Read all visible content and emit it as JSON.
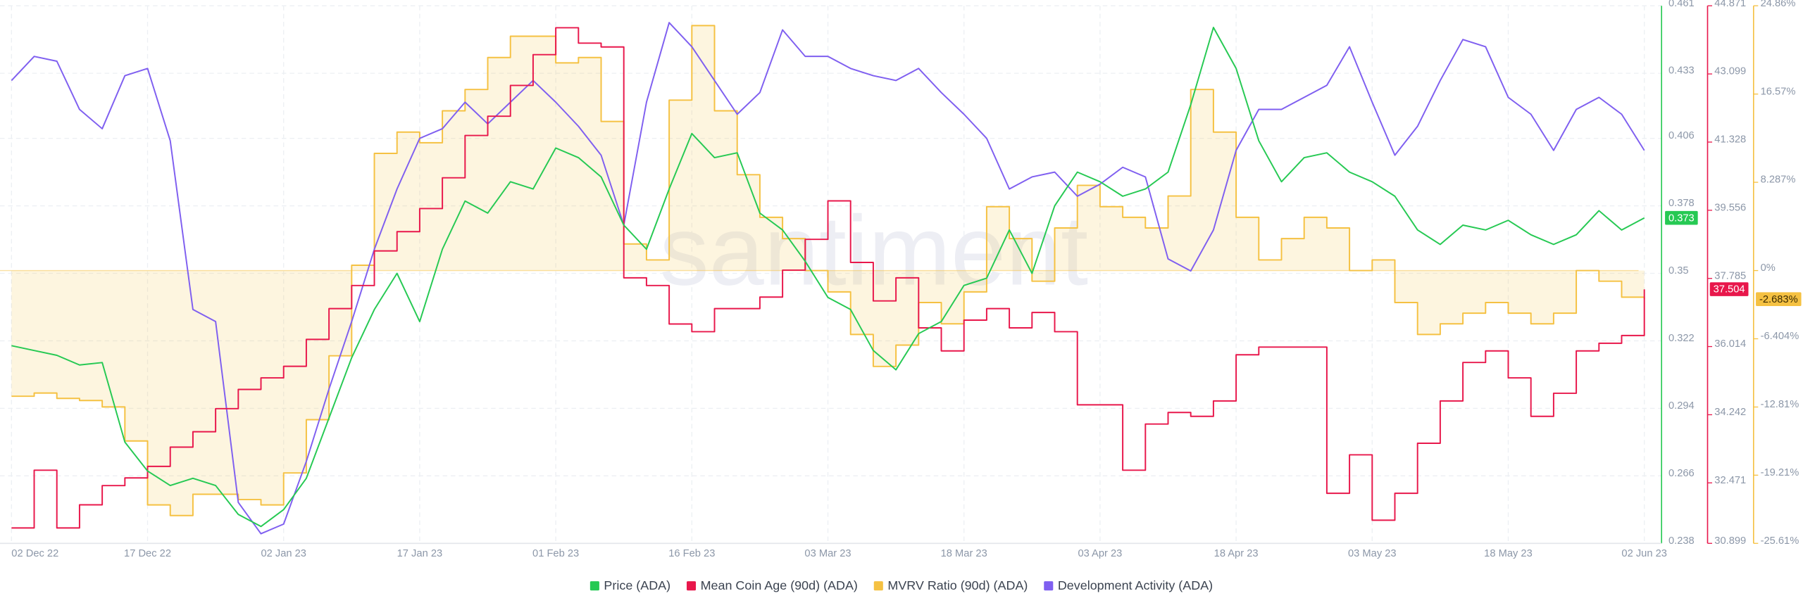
{
  "chart_data": {
    "type": "line",
    "watermark": "santiment",
    "categories": [
      "02 Dec 22",
      null,
      null,
      null,
      null,
      null,
      "17 Dec 22",
      null,
      null,
      null,
      null,
      null,
      "02 Jan 23",
      null,
      null,
      null,
      null,
      null,
      "17 Jan 23",
      null,
      null,
      null,
      null,
      null,
      "01 Feb 23",
      null,
      null,
      null,
      null,
      null,
      "16 Feb 23",
      null,
      null,
      null,
      null,
      null,
      "03 Mar 23",
      null,
      null,
      null,
      null,
      null,
      "18 Mar 23",
      null,
      null,
      null,
      null,
      null,
      "03 Apr 23",
      null,
      null,
      null,
      null,
      null,
      "18 Apr 23",
      null,
      null,
      null,
      null,
      null,
      "03 May 23",
      null,
      null,
      null,
      null,
      null,
      "18 May 23",
      null,
      null,
      null,
      null,
      null,
      "02 Jun 23"
    ],
    "ylim": [
      0.238,
      0.461
    ],
    "yticks": [
      0.238,
      0.266,
      0.294,
      0.322,
      0.35,
      0.378,
      0.406,
      0.433,
      0.461
    ],
    "y2lim": [
      30.899,
      44.871
    ],
    "y2ticks": [
      30.899,
      32.471,
      34.242,
      36.014,
      37.785,
      39.556,
      41.328,
      43.099,
      44.871
    ],
    "y3lim": [
      -25.61,
      24.86
    ],
    "y3ticks": [
      {
        "value": -25.61,
        "label": "-25.61%"
      },
      {
        "value": -19.21,
        "label": "-19.21%"
      },
      {
        "value": -12.81,
        "label": "-12.81%"
      },
      {
        "value": -6.404,
        "label": "-6.404%"
      },
      {
        "value": 0,
        "label": "0%"
      },
      {
        "value": 8.287,
        "label": "8.287%"
      },
      {
        "value": 16.57,
        "label": "16.57%"
      },
      {
        "value": 24.86,
        "label": "24.86%"
      }
    ],
    "grid": true,
    "legend": "bottom",
    "series": [
      {
        "name": "Price (ADA)",
        "color": "#26c953",
        "axis": "y",
        "style": "line",
        "current": 0.373,
        "values": [
          0.32,
          0.318,
          0.316,
          0.312,
          0.313,
          0.28,
          0.268,
          0.262,
          0.265,
          0.262,
          0.25,
          0.245,
          0.252,
          0.265,
          0.29,
          0.315,
          0.335,
          0.35,
          0.33,
          0.36,
          0.38,
          0.375,
          0.388,
          0.385,
          0.402,
          0.398,
          0.39,
          0.37,
          0.36,
          0.385,
          0.408,
          0.398,
          0.4,
          0.375,
          0.368,
          0.355,
          0.34,
          0.335,
          0.318,
          0.31,
          0.325,
          0.33,
          0.345,
          0.348,
          0.368,
          0.35,
          0.378,
          0.392,
          0.388,
          0.382,
          0.385,
          0.392,
          0.42,
          0.452,
          0.435,
          0.405,
          0.388,
          0.398,
          0.4,
          0.392,
          0.388,
          0.382,
          0.368,
          0.362,
          0.37,
          0.368,
          0.372,
          0.366,
          0.362,
          0.366,
          0.376,
          0.368,
          0.373
        ]
      },
      {
        "name": "Mean Coin Age (90d) (ADA)",
        "color": "#e8174b",
        "axis": "y2",
        "style": "step",
        "current": 37.504,
        "values": [
          31.3,
          32.8,
          31.3,
          31.9,
          32.4,
          32.6,
          32.9,
          33.4,
          33.8,
          34.4,
          34.9,
          35.2,
          35.5,
          36.2,
          37.0,
          37.6,
          38.5,
          39.0,
          39.6,
          40.4,
          41.5,
          42.0,
          42.8,
          43.6,
          44.3,
          43.9,
          43.8,
          37.8,
          37.6,
          36.6,
          36.4,
          37.0,
          37.0,
          37.3,
          38.0,
          38.8,
          39.8,
          38.2,
          37.2,
          37.8,
          36.5,
          35.9,
          36.7,
          37.0,
          36.5,
          36.9,
          36.4,
          34.5,
          34.5,
          32.8,
          34.0,
          34.3,
          34.2,
          34.6,
          35.8,
          36.0,
          36.0,
          36.0,
          32.2,
          33.2,
          31.5,
          32.2,
          33.5,
          34.6,
          35.6,
          35.9,
          35.2,
          34.2,
          34.8,
          35.9,
          36.1,
          36.3,
          37.5
        ]
      },
      {
        "name": "MVRV Ratio (90d) (ADA)",
        "color": "#f5c142",
        "axis": "y3",
        "style": "step-area",
        "current": {
          "value": -2.683,
          "label": "-2.683%"
        },
        "values": [
          -11.8,
          -11.5,
          -12.0,
          -12.2,
          -12.8,
          -16,
          -22,
          -23,
          -21,
          -21,
          -21.5,
          -22,
          -19,
          -14,
          -8,
          0.5,
          11,
          13,
          12,
          15,
          17,
          20,
          22,
          22,
          19.5,
          20,
          14,
          2.5,
          1,
          16,
          23,
          15,
          9,
          5,
          3,
          0,
          -2,
          -6,
          -9,
          -7,
          -3,
          -5,
          -2,
          6,
          3,
          -1,
          4,
          8,
          6,
          5,
          4,
          7,
          17,
          13,
          5,
          1,
          3,
          5,
          4,
          0,
          1,
          -3,
          -6,
          -5,
          -4,
          -3,
          -4,
          -5,
          -4,
          0,
          -1,
          -2.5,
          -2.683
        ]
      },
      {
        "name": "Development Activity (ADA)",
        "color": "#7f5ff0",
        "axis": "y",
        "style": "line",
        "values": [
          0.43,
          0.44,
          0.438,
          0.418,
          0.41,
          0.432,
          0.435,
          0.405,
          0.335,
          0.33,
          0.255,
          0.242,
          0.246,
          0.272,
          0.302,
          0.33,
          0.36,
          0.385,
          0.406,
          0.41,
          0.421,
          0.412,
          0.421,
          0.43,
          0.421,
          0.411,
          0.399,
          0.37,
          0.421,
          0.454,
          0.444,
          0.43,
          0.416,
          0.425,
          0.451,
          0.44,
          0.44,
          0.435,
          0.432,
          0.43,
          0.435,
          0.425,
          0.416,
          0.406,
          0.385,
          0.39,
          0.392,
          0.382,
          0.387,
          0.394,
          0.39,
          0.356,
          0.351,
          0.368,
          0.401,
          0.418,
          0.418,
          0.423,
          0.428,
          0.444,
          0.421,
          0.399,
          0.411,
          0.43,
          0.447,
          0.444,
          0.423,
          0.416,
          0.401,
          0.418,
          0.423,
          0.416,
          0.401
        ]
      }
    ]
  }
}
